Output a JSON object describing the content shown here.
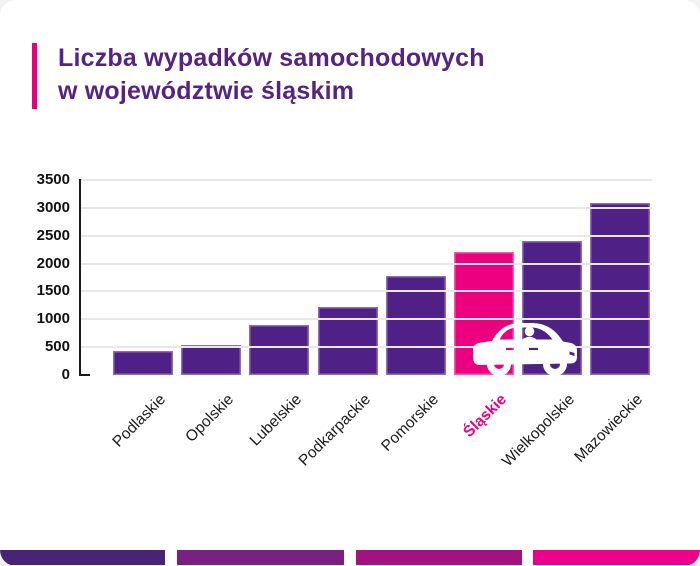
{
  "title": {
    "line1": "Liczba wypadków samochodowych",
    "line2": "w województwie śląskim"
  },
  "chart_data": {
    "type": "bar",
    "title": "Liczba wypadków samochodowych w województwie śląskim",
    "categories": [
      "Podlaskie",
      "Opolskie",
      "Lubelskie",
      "Podkarpackie",
      "Pomorskie",
      "Śląskie",
      "Wielkopolskie",
      "Mazowieckie"
    ],
    "values": [
      430,
      535,
      890,
      1220,
      1780,
      2200,
      2400,
      3080
    ],
    "highlight_category": "Śląskie",
    "highlight_index": 5,
    "y_ticks": [
      0,
      500,
      1000,
      1500,
      2000,
      2500,
      3000,
      3500
    ],
    "ylim": [
      0,
      3500
    ],
    "grid": true,
    "legend_position": "none",
    "xlabel": "",
    "ylabel": "",
    "bar_color": "#4f2187",
    "highlight_color": "#ec0080",
    "x_label_color": "#1a1a1a",
    "x_label_highlight_color": "#ec0080"
  },
  "icons": {
    "car": "car-icon"
  },
  "theme": {
    "title_color": "#552482",
    "accent_color": "#e6007e",
    "grid_color": "#e8e8e8"
  },
  "footer": {
    "segments": [
      {
        "name": "footer-bar-1",
        "color": "#4a2277"
      },
      {
        "name": "footer-bar-2",
        "color": "#7b2083"
      },
      {
        "name": "footer-bar-3",
        "color": "#a31280"
      },
      {
        "name": "footer-bar-4",
        "color": "#ec008c"
      }
    ]
  }
}
